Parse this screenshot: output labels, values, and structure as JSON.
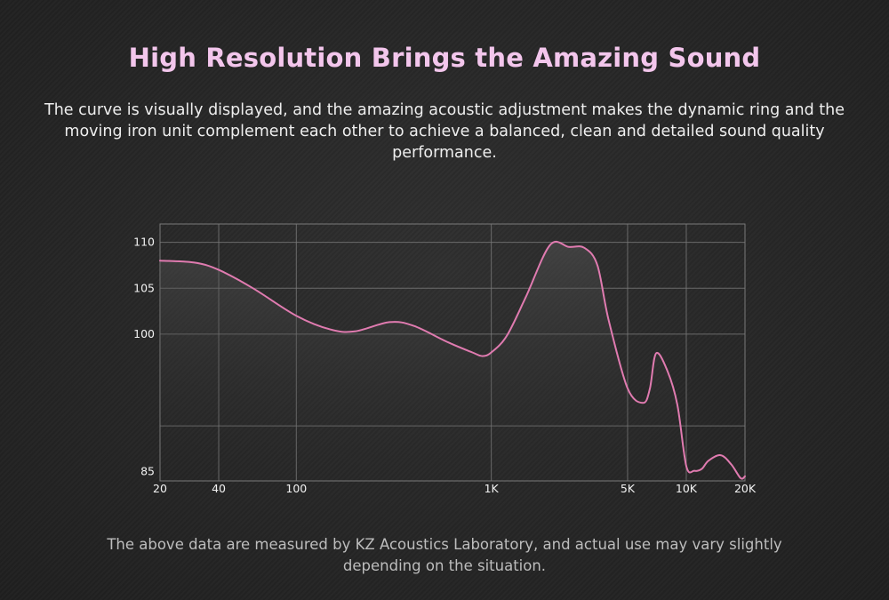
{
  "header": {
    "title": "High Resolution Brings the Amazing Sound",
    "description": "The curve is visually displayed, and the amazing acoustic adjustment makes the dynamic ring and the moving iron unit complement each other to achieve a balanced, clean and detailed sound quality performance."
  },
  "footer": {
    "note": "The above data are measured by KZ Acoustics Laboratory, and actual use may vary slightly depending on the situation."
  },
  "colors": {
    "title": "#f3c6ec",
    "curve": "#e07bb0",
    "grid": "#7a7a7a",
    "background": "#262626"
  },
  "chart_data": {
    "type": "line",
    "title": "",
    "xlabel": "",
    "ylabel": "",
    "x_scale": "log",
    "xlim": [
      20,
      20000
    ],
    "ylim": [
      84,
      112
    ],
    "grid": true,
    "legend": "none",
    "x_ticks": [
      {
        "value": 20,
        "label": "20"
      },
      {
        "value": 40,
        "label": "40"
      },
      {
        "value": 100,
        "label": "100"
      },
      {
        "value": 1000,
        "label": "1K"
      },
      {
        "value": 5000,
        "label": "5K"
      },
      {
        "value": 10000,
        "label": "10K"
      },
      {
        "value": 20000,
        "label": "20K"
      }
    ],
    "y_ticks": [
      {
        "value": 110,
        "label": "110"
      },
      {
        "value": 105,
        "label": "105"
      },
      {
        "value": 100,
        "label": "100"
      },
      {
        "value": 85,
        "label": "85"
      }
    ],
    "series": [
      {
        "name": "",
        "x": [
          20,
          30,
          40,
          60,
          100,
          150,
          200,
          300,
          400,
          600,
          800,
          900,
          1000,
          1200,
          1500,
          2000,
          2500,
          3000,
          3500,
          4000,
          5000,
          6000,
          6500,
          7000,
          8000,
          9000,
          10000,
          11000,
          12000,
          13000,
          15000,
          17000,
          19000,
          20000
        ],
        "y": [
          108,
          107.8,
          107,
          105,
          102,
          100.5,
          100.3,
          101.3,
          100.9,
          99.1,
          98,
          97.6,
          98,
          99.8,
          104,
          109.7,
          109.5,
          109.4,
          107.5,
          101.5,
          94.1,
          92.5,
          94,
          97.9,
          96,
          92.3,
          85.6,
          85.1,
          85.3,
          86.2,
          86.8,
          85.8,
          84.3,
          84.5
        ]
      }
    ]
  }
}
